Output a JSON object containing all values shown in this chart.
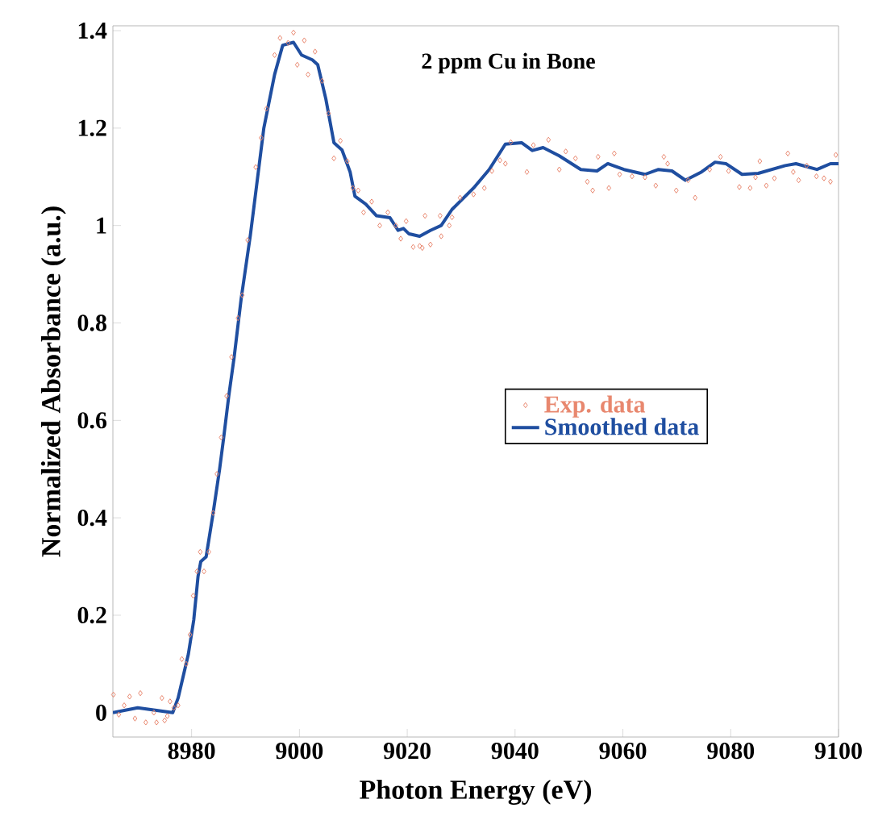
{
  "chart_data": {
    "type": "line",
    "title": "2 ppm Cu in Bone",
    "xlabel": "Photon Energy (eV)",
    "ylabel": "Normalized Absorbance (a.u.)",
    "xlim": [
      8965.4,
      9100
    ],
    "ylim": [
      -0.05,
      1.41
    ],
    "xticks": [
      8980,
      9000,
      9020,
      9040,
      9060,
      9080,
      9100
    ],
    "yticks": [
      0,
      0.2,
      0.4,
      0.6,
      0.8,
      1,
      1.2,
      1.4
    ],
    "grid": false,
    "legend": "right",
    "series": [
      {
        "name": "Exp. data",
        "type": "scatter",
        "marker": "diamond",
        "color": "#e8876e",
        "x": [
          8965.5,
          8966.5,
          8967.5,
          8968.5,
          8969.5,
          8970.5,
          8971.5,
          8973,
          8973.5,
          8974.5,
          8975,
          8975.5,
          8976,
          8976.7,
          8977.5,
          8978.2,
          8979,
          8979.7,
          8980.3,
          8981,
          8981.6,
          8982.3,
          8983.2,
          8984,
          8984.7,
          8985.5,
          8986.5,
          8987.4,
          8988.6,
          8989.4,
          8990.4,
          8991.9,
          8992.9,
          8993.9,
          8995.4,
          8996.4,
          8997.9,
          8998.9,
          8999.6,
          9000.9,
          9001.6,
          9002.9,
          9004.2,
          9005.4,
          9006.4,
          9007.6,
          9008.9,
          9009.9,
          9010.9,
          9011.9,
          9013.4,
          9014.9,
          9016.4,
          9017.9,
          9018.8,
          9019.8,
          9021.1,
          9022.3,
          9022.8,
          9023.3,
          9024.3,
          9026.1,
          9026.3,
          9027.8,
          9028.3,
          9029.8,
          9032.3,
          9034.3,
          9035.7,
          9037.2,
          9038.2,
          9039.2,
          9042.2,
          9043.4,
          9046.2,
          9048.2,
          9049.4,
          9051.2,
          9053.4,
          9054.4,
          9055.4,
          9057.4,
          9058.4,
          9059.4,
          9061.7,
          9064.1,
          9066.1,
          9067.6,
          9068.3,
          9069.9,
          9072.1,
          9073.4,
          9076.1,
          9078.1,
          9079.6,
          9081.6,
          9083.6,
          9084.6,
          9085.4,
          9086.6,
          9088.1,
          9090.6,
          9091.6,
          9092.6,
          9094.1,
          9095.9,
          9097.3,
          9098.5,
          9099.5
        ],
        "values": [
          0.037,
          -0.004,
          0.015,
          0.033,
          -0.012,
          0.04,
          -0.02,
          0.0,
          -0.02,
          0.03,
          -0.016,
          -0.007,
          0.023,
          0.01,
          0.015,
          0.11,
          0.1,
          0.16,
          0.24,
          0.29,
          0.33,
          0.29,
          0.33,
          0.41,
          0.49,
          0.565,
          0.65,
          0.73,
          0.81,
          0.857,
          0.97,
          1.12,
          1.18,
          1.24,
          1.35,
          1.385,
          1.375,
          1.396,
          1.33,
          1.38,
          1.31,
          1.357,
          1.297,
          1.23,
          1.138,
          1.174,
          1.132,
          1.077,
          1.072,
          1.027,
          1.049,
          1.0,
          1.027,
          1.0,
          0.973,
          1.009,
          0.956,
          0.958,
          0.954,
          1.02,
          0.961,
          1.02,
          0.978,
          1.0,
          1.017,
          1.057,
          1.064,
          1.077,
          1.112,
          1.134,
          1.127,
          1.171,
          1.11,
          1.165,
          1.176,
          1.115,
          1.152,
          1.138,
          1.09,
          1.072,
          1.141,
          1.077,
          1.148,
          1.105,
          1.101,
          1.099,
          1.082,
          1.141,
          1.127,
          1.072,
          1.093,
          1.057,
          1.115,
          1.141,
          1.112,
          1.079,
          1.077,
          1.099,
          1.132,
          1.082,
          1.097,
          1.148,
          1.11,
          1.093,
          1.123,
          1.101,
          1.097,
          1.09,
          1.145
        ]
      },
      {
        "name": "Smoothed data",
        "color": "#1f4ea0",
        "x": [
          8965.4,
          8970,
          8976.5,
          8977.5,
          8979.4,
          8980.4,
          8981.2,
          8981.7,
          8982.7,
          8984,
          8985.2,
          8985.9,
          8986.9,
          8987.9,
          8989.2,
          8990.9,
          8993.4,
          8995.4,
          8996.9,
          8998.9,
          9000.4,
          9002.4,
          9003.4,
          9004.9,
          9006.4,
          9007.9,
          9009.4,
          9010.3,
          9012.3,
          9014.3,
          9016.8,
          9018.3,
          9019.3,
          9020.3,
          9022.3,
          9024.3,
          9026.3,
          9028.3,
          9029.3,
          9032.3,
          9035.2,
          9038.2,
          9041.2,
          9043.2,
          9045.2,
          9048.2,
          9052.2,
          9055.2,
          9057.2,
          9060.2,
          9064.1,
          9066.6,
          9069.1,
          9071.6,
          9074.6,
          9077.1,
          9079.1,
          9082.1,
          9085.1,
          9090.1,
          9092.1,
          9096,
          9098.5,
          9100
        ],
        "values": [
          0.0,
          0.01,
          0.0,
          0.03,
          0.12,
          0.19,
          0.28,
          0.31,
          0.32,
          0.41,
          0.5,
          0.56,
          0.65,
          0.73,
          0.85,
          0.98,
          1.2,
          1.31,
          1.37,
          1.376,
          1.35,
          1.34,
          1.33,
          1.26,
          1.17,
          1.155,
          1.11,
          1.06,
          1.044,
          1.02,
          1.016,
          0.99,
          0.994,
          0.983,
          0.978,
          0.99,
          1.0,
          1.033,
          1.044,
          1.077,
          1.115,
          1.167,
          1.17,
          1.154,
          1.16,
          1.143,
          1.115,
          1.112,
          1.127,
          1.115,
          1.105,
          1.115,
          1.112,
          1.093,
          1.11,
          1.13,
          1.127,
          1.105,
          1.107,
          1.123,
          1.127,
          1.115,
          1.127,
          1.127
        ]
      }
    ]
  }
}
